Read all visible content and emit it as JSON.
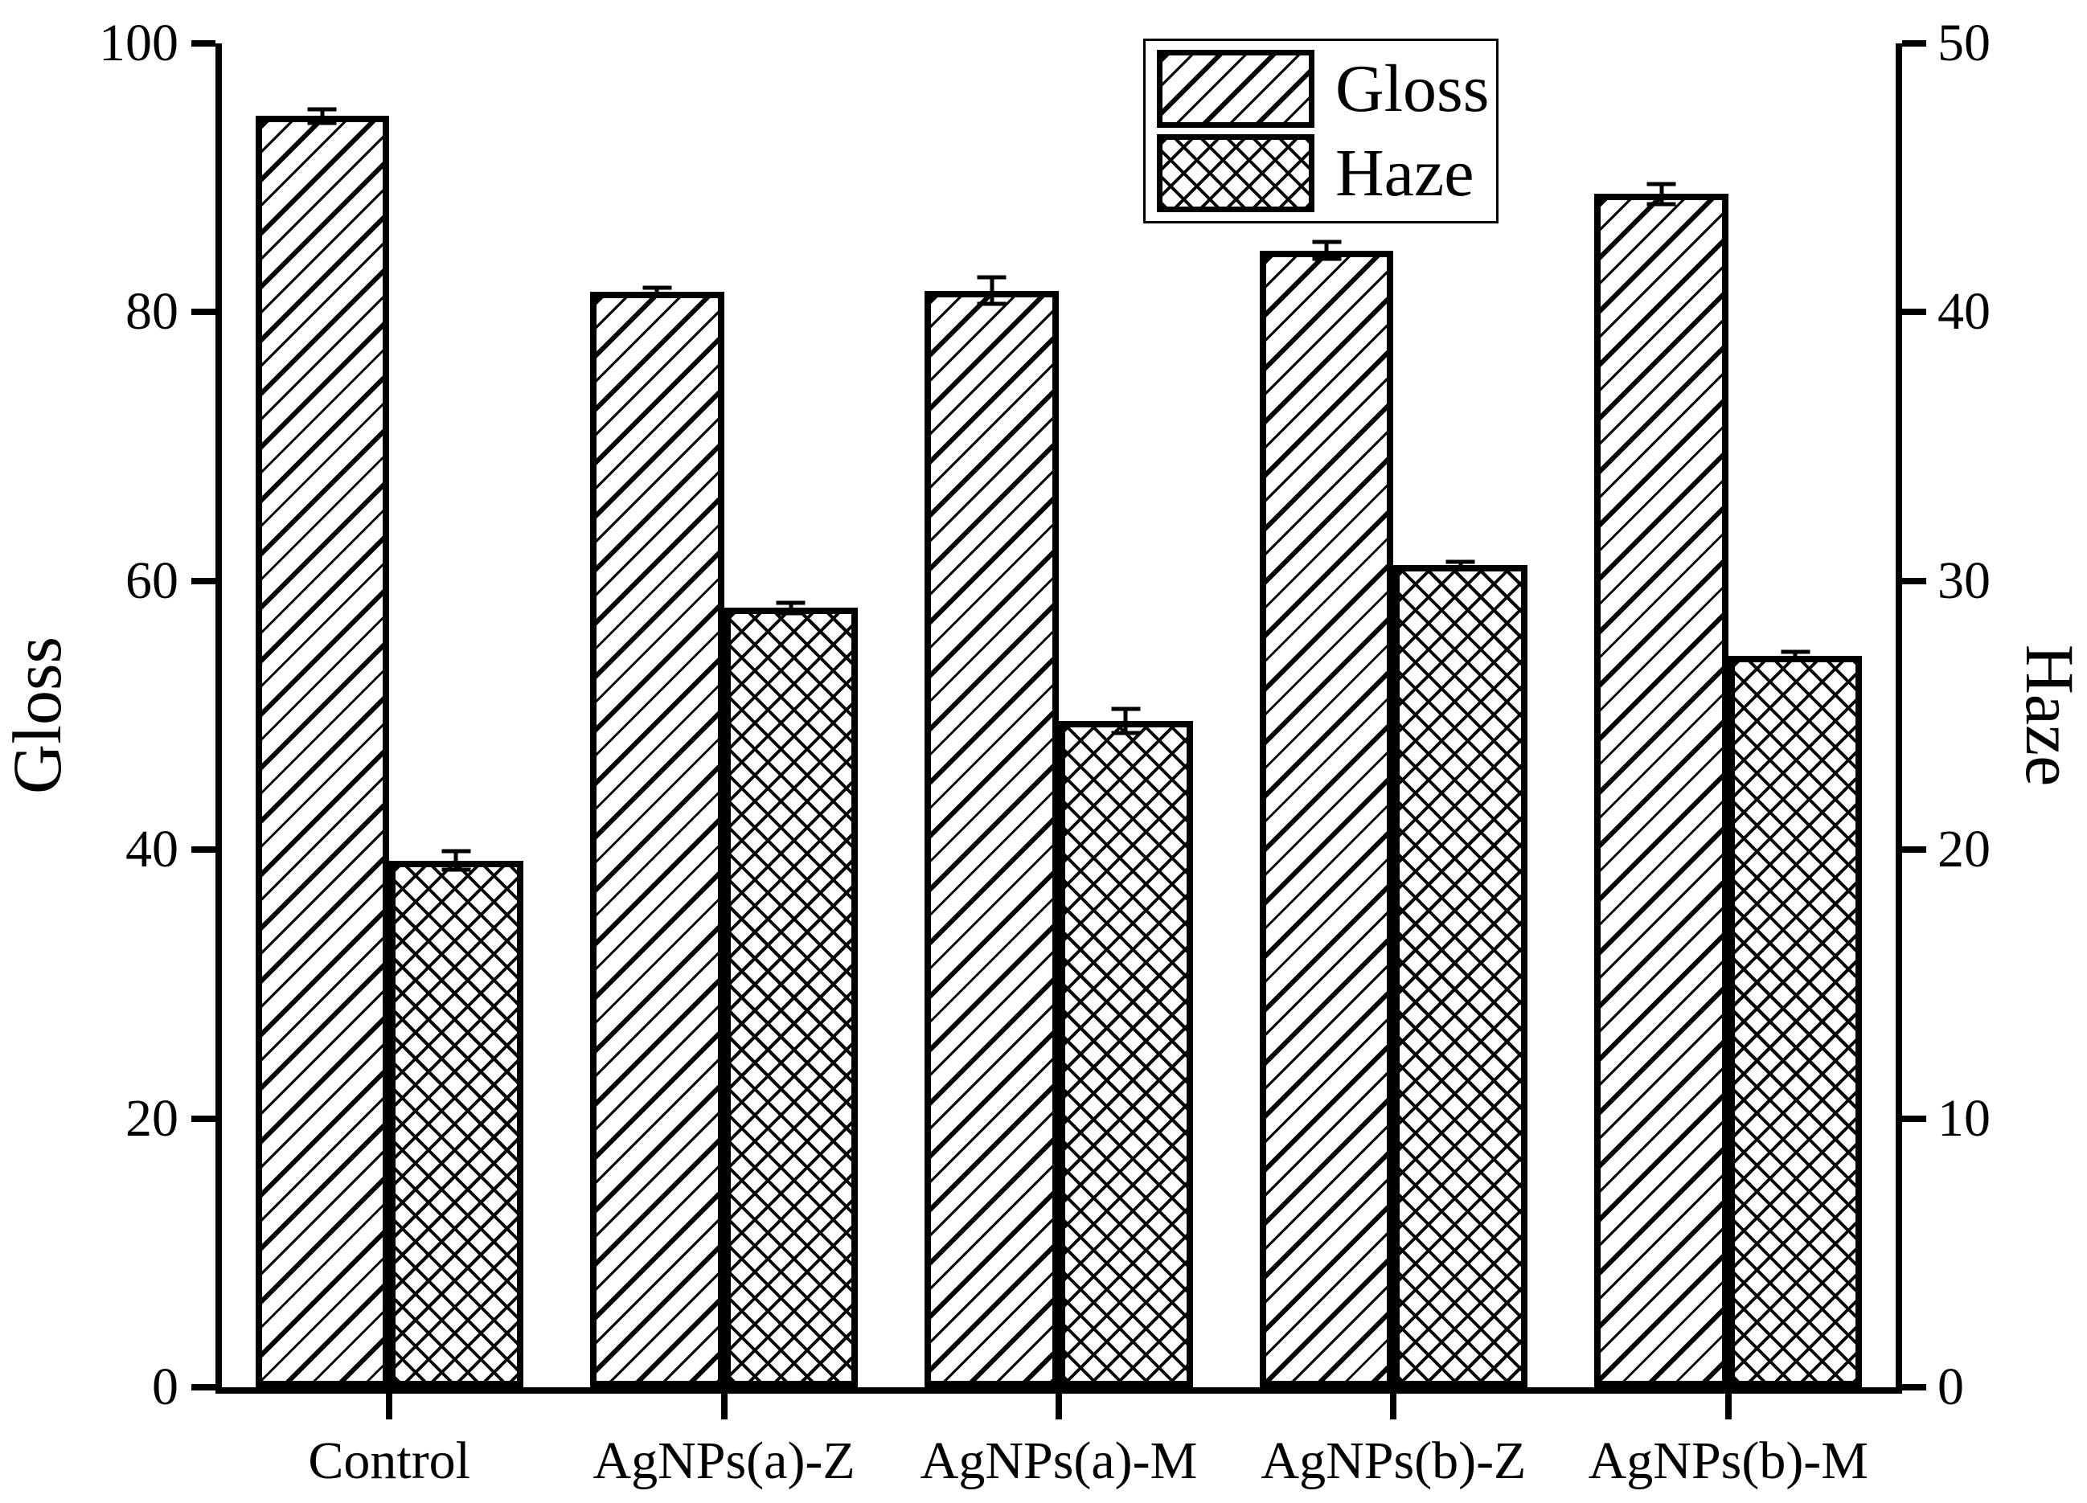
{
  "chart_data": {
    "type": "bar",
    "title": "",
    "categories": [
      "Control",
      "AgNPs(a)-Z",
      "AgNPs(a)-M",
      "AgNPs(b)-Z",
      "AgNPs(b)-M"
    ],
    "series": [
      {
        "name": "Gloss",
        "axis": "left",
        "hatch": "diagonal",
        "values": [
          94.6,
          81.5,
          81.6,
          84.6,
          88.8
        ],
        "errors": [
          0.5,
          0.3,
          1.0,
          0.6,
          0.75
        ]
      },
      {
        "name": "Haze",
        "axis": "right",
        "hatch": "crosshatch",
        "values": [
          19.6,
          29.0,
          24.8,
          30.6,
          27.2
        ],
        "errors": [
          0.35,
          0.2,
          0.45,
          0.1,
          0.15
        ]
      }
    ],
    "left_axis": {
      "label": "Gloss",
      "min": 0,
      "max": 100,
      "ticks": [
        0,
        20,
        40,
        60,
        80,
        100
      ]
    },
    "right_axis": {
      "label": "Haze",
      "min": 0,
      "max": 50,
      "ticks": [
        0,
        10,
        20,
        30,
        40,
        50
      ]
    },
    "legend": {
      "items": [
        "Gloss",
        "Haze"
      ],
      "position": "top-center-right",
      "framed": true
    },
    "grid": false,
    "colors": {
      "foreground": "#000000",
      "background": "#ffffff"
    }
  }
}
